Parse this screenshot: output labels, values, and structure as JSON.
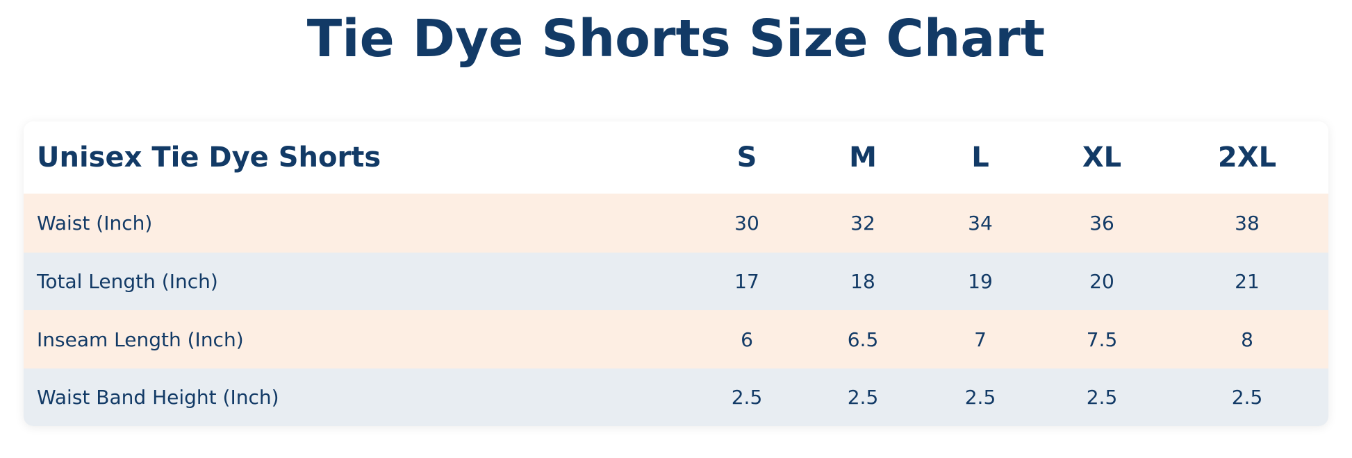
{
  "title": "Tie Dye Shorts Size Chart",
  "table": {
    "header": [
      "Unisex Tie Dye Shorts",
      "S",
      "M",
      "L",
      "XL",
      "2XL"
    ],
    "rows": [
      [
        "Waist (Inch)",
        30,
        32,
        34,
        36,
        38
      ],
      [
        "Total Length (Inch)",
        17,
        18,
        19,
        20,
        21
      ],
      [
        "Inseam Length (Inch)",
        6,
        6.5,
        7,
        7.5,
        8
      ],
      [
        "Waist Band Height (Inch)",
        2.5,
        2.5,
        2.5,
        2.5,
        2.5
      ]
    ]
  }
}
